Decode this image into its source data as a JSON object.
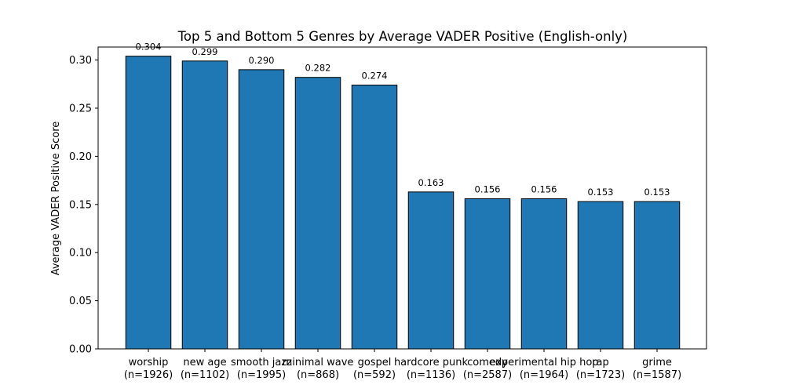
{
  "chart_data": {
    "type": "bar",
    "title": "Top 5 and Bottom 5 Genres by Average VADER Positive (English-only)",
    "xlabel": "",
    "ylabel": "Average VADER Positive Score",
    "ylim": [
      0,
      0.3135
    ],
    "yticks": [
      "0.00",
      "0.05",
      "0.10",
      "0.15",
      "0.20",
      "0.25",
      "0.30"
    ],
    "grid": false,
    "categories": [
      "worship",
      "new age",
      "smooth jazz",
      "minimal wave",
      "gospel",
      "hardcore punk",
      "comedy",
      "experimental hip hop",
      "rap",
      "grime"
    ],
    "counts": [
      "(n=1926)",
      "(n=1102)",
      "(n=1995)",
      "(n=868)",
      "(n=592)",
      "(n=1136)",
      "(n=2587)",
      "(n=1964)",
      "(n=1723)",
      "(n=1587)"
    ],
    "values": [
      0.304,
      0.299,
      0.29,
      0.282,
      0.274,
      0.163,
      0.156,
      0.156,
      0.153,
      0.153
    ],
    "value_labels": [
      "0.304",
      "0.299",
      "0.290",
      "0.282",
      "0.274",
      "0.163",
      "0.156",
      "0.156",
      "0.153",
      "0.153"
    ],
    "bar_color": "#1f77b4",
    "edge_color": "#000000"
  }
}
